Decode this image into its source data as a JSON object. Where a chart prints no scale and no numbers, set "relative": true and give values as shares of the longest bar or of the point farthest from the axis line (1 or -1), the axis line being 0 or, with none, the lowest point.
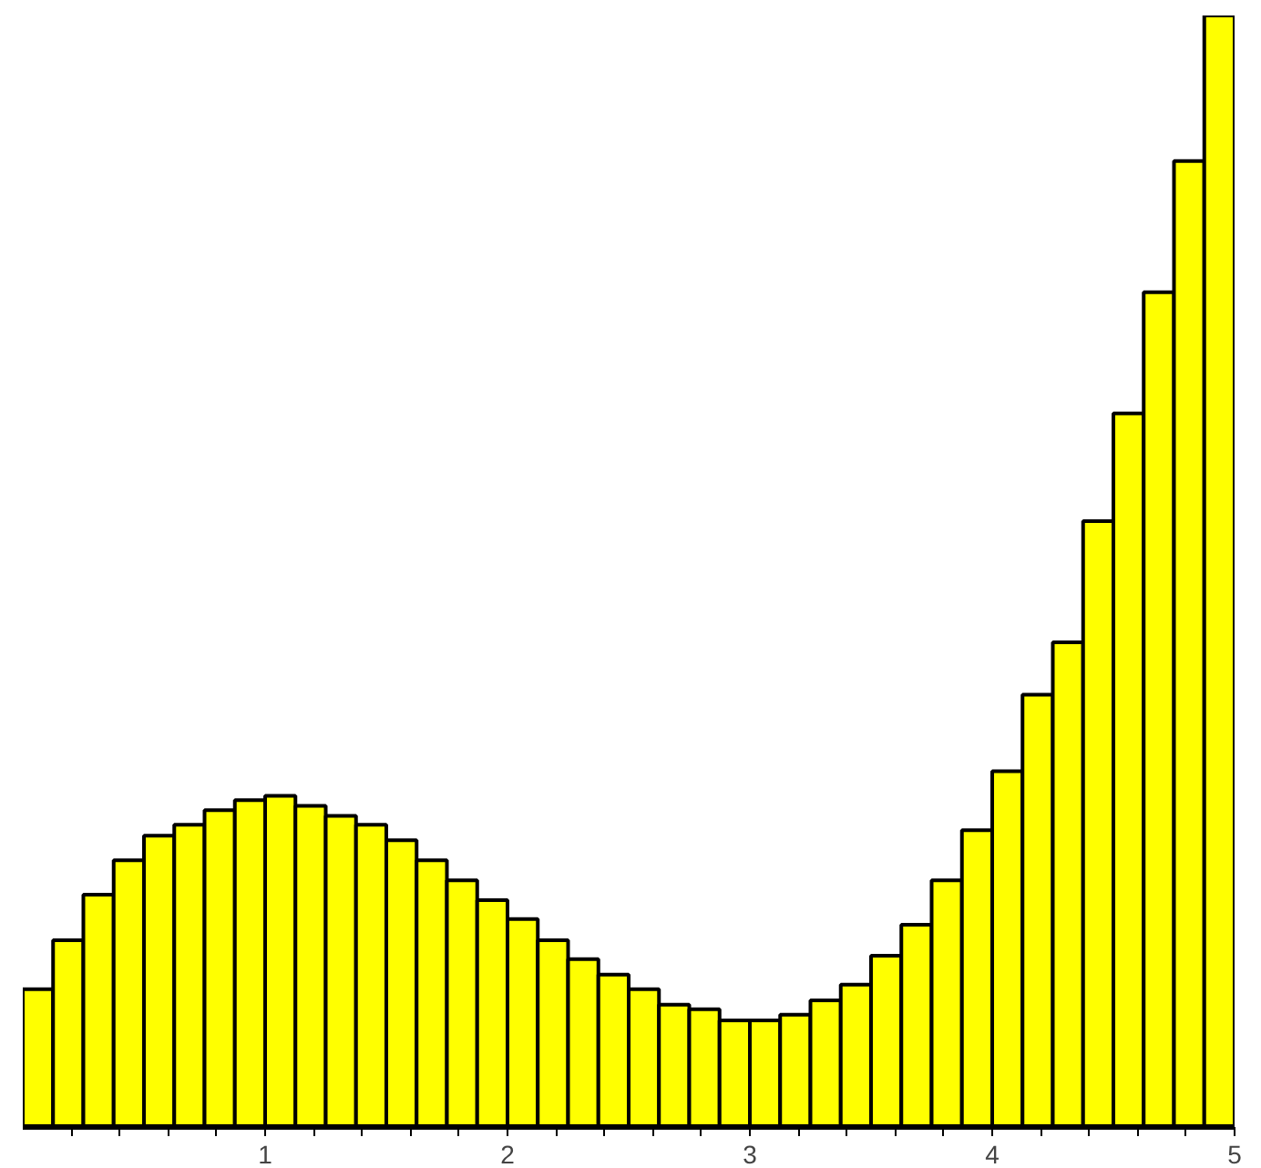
{
  "chart_data": {
    "type": "bar",
    "relative": true,
    "color": "#ffff00",
    "x": [
      0.0625,
      0.1875,
      0.3125,
      0.4375,
      0.5625,
      0.6875,
      0.8125,
      0.9375,
      1.0625,
      1.1875,
      1.3125,
      1.4375,
      1.5625,
      1.6875,
      1.8125,
      1.9375,
      2.0625,
      2.1875,
      2.3125,
      2.4375,
      2.5625,
      2.6875,
      2.8125,
      2.9375,
      3.0625,
      3.1875,
      3.3125,
      3.4375,
      3.5625,
      3.6875,
      3.8125,
      3.9375,
      4.0625,
      4.1875,
      4.3125,
      4.4375,
      4.5625,
      4.6875,
      4.8125,
      4.9375
    ],
    "values": [
      0.124,
      0.168,
      0.209,
      0.24,
      0.262,
      0.272,
      0.285,
      0.294,
      0.298,
      0.289,
      0.28,
      0.272,
      0.258,
      0.24,
      0.222,
      0.204,
      0.187,
      0.168,
      0.151,
      0.137,
      0.124,
      0.11,
      0.106,
      0.096,
      0.096,
      0.101,
      0.114,
      0.128,
      0.154,
      0.182,
      0.222,
      0.267,
      0.32,
      0.389,
      0.436,
      0.545,
      0.642,
      0.751,
      0.869,
      1
    ],
    "xlim": [
      0,
      5
    ],
    "xticks": [
      {
        "value": 0.2,
        "label": null
      },
      {
        "value": 0.4,
        "label": null
      },
      {
        "value": 0.6,
        "label": null
      },
      {
        "value": 0.8,
        "label": null
      },
      1,
      {
        "value": 1.2,
        "label": null
      },
      {
        "value": 1.4,
        "label": null
      },
      {
        "value": 1.6,
        "label": null
      },
      {
        "value": 1.8,
        "label": null
      },
      2,
      {
        "value": 2.2,
        "label": null
      },
      {
        "value": 2.4,
        "label": null
      },
      {
        "value": 2.6,
        "label": null
      },
      {
        "value": 2.8,
        "label": null
      },
      3,
      {
        "value": 3.2,
        "label": null
      },
      {
        "value": 3.4,
        "label": null
      },
      {
        "value": 3.6,
        "label": null
      },
      {
        "value": 3.8,
        "label": null
      },
      4,
      {
        "value": 4.2,
        "label": null
      },
      {
        "value": 4.4,
        "label": null
      },
      {
        "value": 4.6,
        "label": null
      },
      {
        "value": 4.8,
        "label": null
      },
      5
    ]
  }
}
